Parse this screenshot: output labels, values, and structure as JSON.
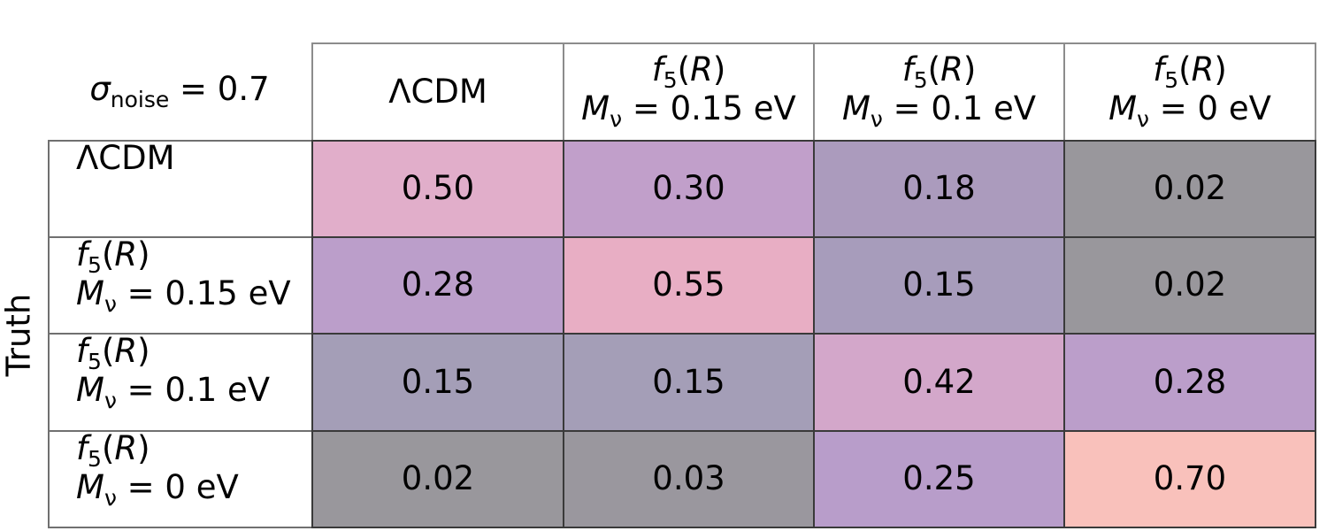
{
  "chart_data": {
    "type": "heatmap",
    "corner_label": {
      "symbol": "σ",
      "subscript": "noise",
      "rest": " = 0.7"
    },
    "ylabel": "Truth",
    "xlabel": "",
    "columns": [
      {
        "line1": "ΛCDM",
        "line2": ""
      },
      {
        "line1": "f5(R)",
        "line2": "Mν = 0.15 eV"
      },
      {
        "line1": "f5(R)",
        "line2": "Mν = 0.1 eV"
      },
      {
        "line1": "f5(R)",
        "line2": "Mν = 0 eV"
      }
    ],
    "rows": [
      {
        "line1": "ΛCDM",
        "line2": ""
      },
      {
        "line1": "f5(R)",
        "line2": "Mν = 0.15 eV"
      },
      {
        "line1": "f5(R)",
        "line2": "Mν = 0.1 eV"
      },
      {
        "line1": "f5(R)",
        "line2": "Mν = 0 eV"
      }
    ],
    "values": [
      [
        "0.50",
        "0.30",
        "0.18",
        "0.02"
      ],
      [
        "0.28",
        "0.55",
        "0.15",
        "0.02"
      ],
      [
        "0.15",
        "0.15",
        "0.42",
        "0.28"
      ],
      [
        "0.02",
        "0.03",
        "0.25",
        "0.70"
      ]
    ],
    "colors": [
      [
        "#e1aeca",
        "#c19fca",
        "#ab9bbd",
        "#99979c"
      ],
      [
        "#bb9eca",
        "#e8aec4",
        "#a79cbb",
        "#99979c"
      ],
      [
        "#a49eb7",
        "#a49eb7",
        "#d3a7ca",
        "#bb9eca"
      ],
      [
        "#99979c",
        "#9a979e",
        "#b89dca",
        "#f9c1bb"
      ]
    ]
  }
}
